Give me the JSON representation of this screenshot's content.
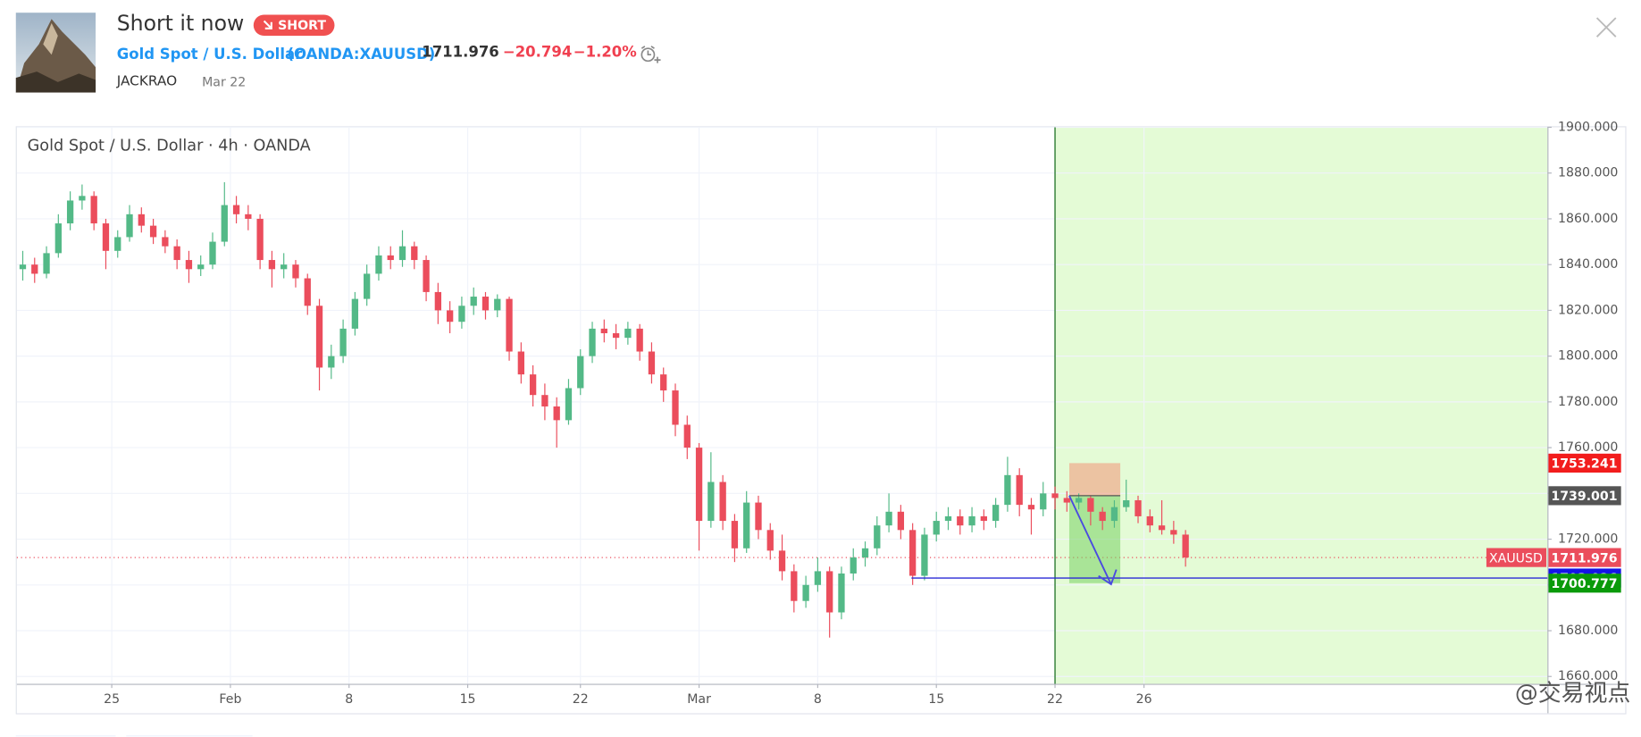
{
  "header": {
    "title": "Short it now",
    "badge": "SHORT",
    "symbol": "Gold Spot / U.S. Dollar",
    "ticker": "(OANDA:XAUUSD)",
    "price": "1711.976",
    "change": "−20.794",
    "change_pct": "−1.20%",
    "author": "JACKRAO",
    "date": "Mar 22"
  },
  "watermark": "@交易视点",
  "chart_data": {
    "type": "candlestick",
    "title": "Gold Spot / U.S. Dollar · 4h · OANDA",
    "up_color": "#53b987",
    "down_color": "#eb4d5c",
    "ohlc": [
      [
        1838,
        1846,
        1833,
        1840
      ],
      [
        1840,
        1843,
        1832,
        1836
      ],
      [
        1836,
        1848,
        1834,
        1845
      ],
      [
        1845,
        1862,
        1843,
        1858
      ],
      [
        1858,
        1872,
        1855,
        1868
      ],
      [
        1868,
        1875,
        1864,
        1870
      ],
      [
        1870,
        1872,
        1855,
        1858
      ],
      [
        1858,
        1860,
        1838,
        1846
      ],
      [
        1846,
        1855,
        1843,
        1852
      ],
      [
        1852,
        1866,
        1850,
        1862
      ],
      [
        1862,
        1865,
        1854,
        1857
      ],
      [
        1857,
        1860,
        1849,
        1852
      ],
      [
        1852,
        1855,
        1845,
        1848
      ],
      [
        1848,
        1851,
        1838,
        1842
      ],
      [
        1842,
        1846,
        1832,
        1838
      ],
      [
        1838,
        1844,
        1835,
        1840
      ],
      [
        1840,
        1854,
        1838,
        1850
      ],
      [
        1850,
        1876,
        1848,
        1866
      ],
      [
        1866,
        1870,
        1858,
        1862
      ],
      [
        1862,
        1866,
        1855,
        1860
      ],
      [
        1860,
        1862,
        1838,
        1842
      ],
      [
        1842,
        1846,
        1830,
        1838
      ],
      [
        1838,
        1845,
        1834,
        1840
      ],
      [
        1840,
        1842,
        1830,
        1834
      ],
      [
        1834,
        1836,
        1818,
        1822
      ],
      [
        1822,
        1825,
        1785,
        1795
      ],
      [
        1795,
        1805,
        1790,
        1800
      ],
      [
        1800,
        1816,
        1797,
        1812
      ],
      [
        1812,
        1828,
        1809,
        1825
      ],
      [
        1825,
        1840,
        1822,
        1836
      ],
      [
        1836,
        1848,
        1833,
        1844
      ],
      [
        1844,
        1848,
        1838,
        1842
      ],
      [
        1842,
        1855,
        1839,
        1848
      ],
      [
        1848,
        1850,
        1838,
        1842
      ],
      [
        1842,
        1844,
        1824,
        1828
      ],
      [
        1828,
        1832,
        1814,
        1820
      ],
      [
        1820,
        1824,
        1810,
        1815
      ],
      [
        1815,
        1826,
        1812,
        1822
      ],
      [
        1822,
        1830,
        1818,
        1826
      ],
      [
        1826,
        1828,
        1816,
        1820
      ],
      [
        1820,
        1827,
        1817,
        1825
      ],
      [
        1825,
        1826,
        1798,
        1802
      ],
      [
        1802,
        1806,
        1788,
        1792
      ],
      [
        1792,
        1796,
        1778,
        1783
      ],
      [
        1783,
        1788,
        1772,
        1778
      ],
      [
        1778,
        1782,
        1760,
        1772
      ],
      [
        1772,
        1790,
        1770,
        1786
      ],
      [
        1786,
        1803,
        1783,
        1800
      ],
      [
        1800,
        1815,
        1797,
        1812
      ],
      [
        1812,
        1816,
        1806,
        1810
      ],
      [
        1810,
        1814,
        1803,
        1808
      ],
      [
        1808,
        1815,
        1805,
        1812
      ],
      [
        1812,
        1814,
        1798,
        1802
      ],
      [
        1802,
        1806,
        1788,
        1792
      ],
      [
        1792,
        1795,
        1780,
        1785
      ],
      [
        1785,
        1788,
        1765,
        1770
      ],
      [
        1770,
        1774,
        1755,
        1760
      ],
      [
        1760,
        1762,
        1715,
        1728
      ],
      [
        1728,
        1758,
        1725,
        1745
      ],
      [
        1745,
        1748,
        1724,
        1728
      ],
      [
        1728,
        1731,
        1710,
        1716
      ],
      [
        1716,
        1741,
        1714,
        1736
      ],
      [
        1736,
        1739,
        1720,
        1724
      ],
      [
        1724,
        1727,
        1711,
        1715
      ],
      [
        1715,
        1722,
        1702,
        1706
      ],
      [
        1706,
        1709,
        1688,
        1693
      ],
      [
        1693,
        1704,
        1690,
        1700
      ],
      [
        1700,
        1712,
        1697,
        1706
      ],
      [
        1706,
        1708,
        1677,
        1688
      ],
      [
        1688,
        1708,
        1685,
        1705
      ],
      [
        1705,
        1716,
        1702,
        1712
      ],
      [
        1712,
        1719,
        1708,
        1716
      ],
      [
        1716,
        1730,
        1713,
        1726
      ],
      [
        1726,
        1740,
        1723,
        1732
      ],
      [
        1732,
        1735,
        1720,
        1724
      ],
      [
        1724,
        1727,
        1700,
        1704
      ],
      [
        1704,
        1725,
        1702,
        1722
      ],
      [
        1722,
        1732,
        1719,
        1728
      ],
      [
        1728,
        1734,
        1724,
        1730
      ],
      [
        1730,
        1733,
        1722,
        1726
      ],
      [
        1726,
        1734,
        1723,
        1730
      ],
      [
        1730,
        1733,
        1724,
        1728
      ],
      [
        1728,
        1738,
        1725,
        1735
      ],
      [
        1735,
        1756,
        1732,
        1748
      ],
      [
        1748,
        1751,
        1730,
        1735
      ],
      [
        1735,
        1738,
        1722,
        1733
      ],
      [
        1733,
        1745,
        1730,
        1740
      ],
      [
        1740,
        1743,
        1733,
        1738
      ],
      [
        1738,
        1741,
        1732,
        1736
      ],
      [
        1736,
        1740,
        1733,
        1738
      ],
      [
        1738,
        1739,
        1726,
        1732
      ],
      [
        1732,
        1734,
        1724,
        1728
      ],
      [
        1728,
        1737,
        1725,
        1734
      ],
      [
        1734,
        1746,
        1732,
        1737
      ],
      [
        1737,
        1739,
        1727,
        1730
      ],
      [
        1730,
        1733,
        1723,
        1726
      ],
      [
        1726,
        1737,
        1722,
        1724
      ],
      [
        1724,
        1728,
        1718,
        1722
      ],
      [
        1722,
        1724,
        1708,
        1712
      ]
    ],
    "xlim": [
      0,
      129
    ],
    "xticks": [
      {
        "value": 8,
        "label": "25"
      },
      {
        "value": 18,
        "label": "Feb"
      },
      {
        "value": 28,
        "label": "8"
      },
      {
        "value": 38,
        "label": "15"
      },
      {
        "value": 47.5,
        "label": "22"
      },
      {
        "value": 57.5,
        "label": "Mar"
      },
      {
        "value": 67.5,
        "label": "8"
      },
      {
        "value": 77.5,
        "label": "15"
      },
      {
        "value": 87.5,
        "label": "22"
      },
      {
        "value": 95,
        "label": "26"
      }
    ],
    "ylim": [
      1656.8,
      1900
    ],
    "yticks": [
      {
        "value": 1660,
        "label": "1660.000"
      },
      {
        "value": 1680,
        "label": "1680.000"
      },
      {
        "value": 1700,
        "label": "1700.000"
      },
      {
        "value": 1720,
        "label": "1720.000"
      },
      {
        "value": 1740,
        "label": "1740.000"
      },
      {
        "value": 1760,
        "label": "1760.000"
      },
      {
        "value": 1780,
        "label": "1780.000"
      },
      {
        "value": 1800,
        "label": "1800.000"
      },
      {
        "value": 1820,
        "label": "1820.000"
      },
      {
        "value": 1840,
        "label": "1840.000"
      },
      {
        "value": 1860,
        "label": "1860.000"
      },
      {
        "value": 1880,
        "label": "1880.000"
      },
      {
        "value": 1900,
        "label": "1900.000"
      }
    ],
    "grid": true,
    "vertical_line": {
      "x": 87.5,
      "color": "#2e7d32",
      "zone_color": "#e4fbd6"
    },
    "position": {
      "x": [
        88.7,
        93
      ],
      "entry": 1739.001,
      "stop": 1753.241,
      "target": 1700.777
    },
    "hline": {
      "x": 75.4,
      "value": 1703.026,
      "color": "#2b2bd6"
    },
    "last_price": {
      "symbol": "XAUUSD",
      "value": 1711.976
    }
  }
}
